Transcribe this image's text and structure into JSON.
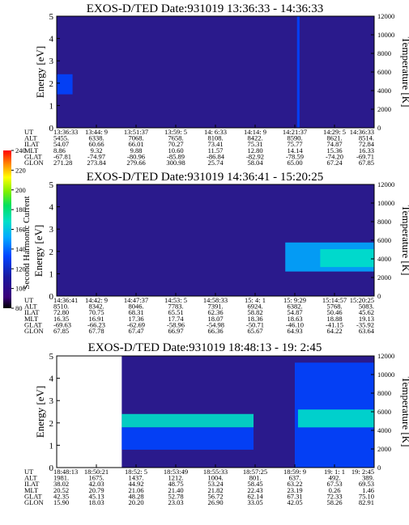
{
  "colorbar": {
    "label": "Second Harmonic Current",
    "ticks": [
      "80",
      "100",
      "120",
      "140",
      "160",
      "180",
      "200",
      "220",
      "240"
    ]
  },
  "chart_data": [
    {
      "type": "heatmap",
      "title": "EXOS-D/TED   Date:931019   13:36:33 - 14:36:33",
      "ylabel": "Energy [eV]",
      "y2label": "Temperature [K]",
      "ylim": [
        0,
        5
      ],
      "y2lim": [
        0,
        12000
      ],
      "yticks": [
        "0",
        "1",
        "2",
        "3",
        "4",
        "5"
      ],
      "y2ticks": [
        "0",
        "2000",
        "4000",
        "6000",
        "8000",
        "10000",
        "12000"
      ],
      "row_labels": [
        "UT",
        "ALT",
        "ILAT",
        "MLT",
        "GLAT",
        "GLON"
      ],
      "columns": [
        [
          "13:36:33",
          "5455.",
          "54.07",
          "8.86",
          "-67.81",
          "271.28"
        ],
        [
          "13:44: 9",
          "6338.",
          "60.66",
          "9.32",
          "-74.97",
          "273.84"
        ],
        [
          "13:51:37",
          "7068.",
          "66.01",
          "9.88",
          "-80.96",
          "279.66"
        ],
        [
          "13:59: 5",
          "7658.",
          "70.27",
          "10.60",
          "-85.89",
          "300.98"
        ],
        [
          "14: 6:33",
          "8108.",
          "73.41",
          "11.57",
          "-86.84",
          "25.74"
        ],
        [
          "14:14: 9",
          "8422.",
          "75.31",
          "12.80",
          "-82.92",
          "58.04"
        ],
        [
          "14:21:37",
          "8590.",
          "75.77",
          "14.14",
          "-78.59",
          "65.00"
        ],
        [
          "14:29: 5",
          "8621.",
          "74.87",
          "15.36",
          "-74.20",
          "67.24"
        ],
        [
          "14:36:33",
          "8514.",
          "72.84",
          "16.33",
          "-69.71",
          "67.85"
        ]
      ],
      "features": [
        {
          "kind": "band",
          "x": [
            0.0,
            0.05
          ],
          "y": [
            1.5,
            2.4
          ],
          "level": 0.42
        },
        {
          "kind": "spike",
          "x": [
            0.757,
            0.765
          ],
          "y": [
            0,
            5
          ],
          "level": 0.4
        }
      ]
    },
    {
      "type": "heatmap",
      "title": "EXOS-D/TED   Date:931019   14:36:41 - 15:20:25",
      "ylabel": "Energy [eV]",
      "y2label": "Temperature [K]",
      "ylim": [
        0,
        5
      ],
      "y2lim": [
        0,
        12000
      ],
      "yticks": [
        "0",
        "1",
        "2",
        "3",
        "4",
        "5"
      ],
      "y2ticks": [
        "0",
        "2000",
        "4000",
        "6000",
        "8000",
        "10000",
        "12000"
      ],
      "row_labels": [
        "UT",
        "ALT",
        "ILAT",
        "MLT",
        "GLAT",
        "GLON"
      ],
      "columns": [
        [
          "14:36:41",
          "8510.",
          "72.80",
          "16.35",
          "-69.63",
          "67.85"
        ],
        [
          "14:42: 9",
          "8342.",
          "70.75",
          "16.91",
          "-66.23",
          "67.78"
        ],
        [
          "14:47:37",
          "8046.",
          "68.31",
          "17.36",
          "-62.69",
          "67.47"
        ],
        [
          "14:53: 5",
          "7783.",
          "65.51",
          "17.74",
          "-58.96",
          "66.97"
        ],
        [
          "14:58:33",
          "7391.",
          "62.36",
          "18.07",
          "-54.98",
          "66.36"
        ],
        [
          "15: 4: 1",
          "6924.",
          "58.82",
          "18.36",
          "-50.71",
          "65.67"
        ],
        [
          "15: 9:29",
          "6382.",
          "54.87",
          "18.63",
          "-46.10",
          "64.93"
        ],
        [
          "15:14:57",
          "5768.",
          "50.46",
          "18.88",
          "-41.15",
          "64.22"
        ],
        [
          "15:20:25",
          "5083.",
          "45.62",
          "19.13",
          "-35.92",
          "63.64"
        ]
      ],
      "features": [
        {
          "kind": "band",
          "x": [
            0.72,
            1.0
          ],
          "y": [
            1.1,
            2.4
          ],
          "level": 0.5
        },
        {
          "kind": "band",
          "x": [
            0.83,
            1.0
          ],
          "y": [
            1.3,
            2.1
          ],
          "level": 0.58
        }
      ]
    },
    {
      "type": "heatmap",
      "title": "EXOS-D/TED   Date:931019   18:48:13 - 19: 2:45",
      "ylabel": "Energy [eV]",
      "y2label": "Temperature [K]",
      "ylim": [
        0,
        5
      ],
      "y2lim": [
        0,
        12000
      ],
      "yticks": [
        "0",
        "1",
        "2",
        "3",
        "4",
        "5"
      ],
      "y2ticks": [
        "0",
        "2000",
        "4000",
        "6000",
        "8000",
        "10000",
        "12000"
      ],
      "row_labels": [
        "UT",
        "ALT",
        "ILAT",
        "MLT",
        "GLAT",
        "GLON"
      ],
      "columns": [
        [
          "18:48:13",
          "1981.",
          "38.02",
          "20.52",
          "42.35",
          "15.90"
        ],
        [
          "18:50:21",
          "1675.",
          "42.03",
          "20.79",
          "45.13",
          "18.03"
        ],
        [
          "18:52: 5",
          "1437.",
          "44.92",
          "21.06",
          "48.28",
          "20.20"
        ],
        [
          "18:53:49",
          "1212.",
          "48.75",
          "21.40",
          "52.78",
          "23.03"
        ],
        [
          "18:55:33",
          "1004.",
          "53.24",
          "21.82",
          "56.72",
          "26.90"
        ],
        [
          "18:57:25",
          "801.",
          "58.45",
          "22.43",
          "62.14",
          "33.05"
        ],
        [
          "18:59: 9",
          "637.",
          "63.22",
          "23.19",
          "67.31",
          "42.05"
        ],
        [
          "19: 1: 1",
          "492.",
          "67.53",
          "0.26",
          "72.33",
          "58.26"
        ],
        [
          "19: 2:45",
          "389.",
          "69.53",
          "1.46",
          "75.10",
          "82.91"
        ]
      ],
      "features": [
        {
          "kind": "nodata",
          "x": [
            0.0,
            0.205
          ],
          "y": [
            0,
            5
          ]
        },
        {
          "kind": "band",
          "x": [
            0.205,
            0.62
          ],
          "y": [
            1.8,
            2.4
          ],
          "level": 0.55
        },
        {
          "kind": "band",
          "x": [
            0.205,
            0.62
          ],
          "y": [
            0.8,
            1.8
          ],
          "level": 0.38
        },
        {
          "kind": "band",
          "x": [
            0.75,
            1.0
          ],
          "y": [
            0,
            4.7
          ],
          "level": 0.35
        },
        {
          "kind": "band",
          "x": [
            0.76,
            1.0
          ],
          "y": [
            1.8,
            2.6
          ],
          "level": 0.55
        }
      ]
    }
  ]
}
